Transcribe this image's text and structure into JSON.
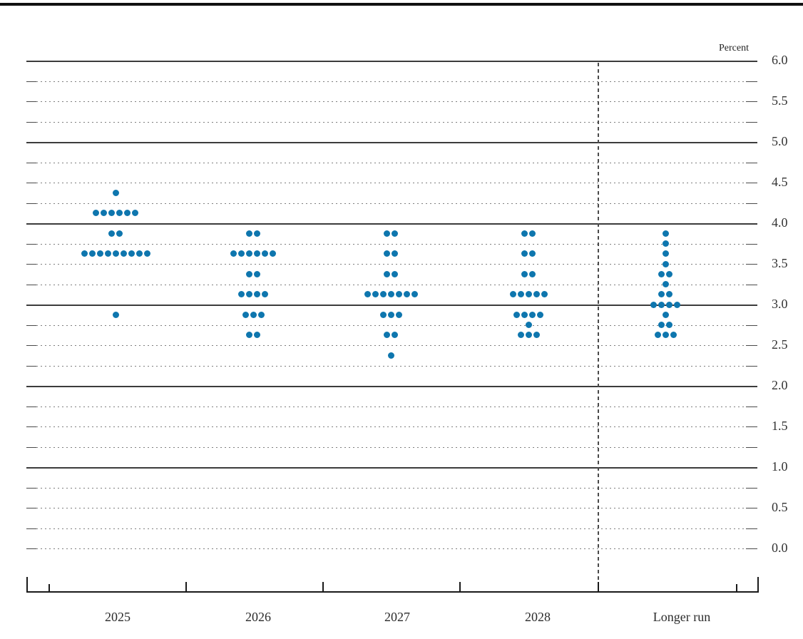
{
  "chart_data": {
    "type": "scatter",
    "variant": "fomc-dot-plot",
    "unit_label": "Percent",
    "grid": "on",
    "legend_position": "none",
    "categories": [
      "2025",
      "2026",
      "2027",
      "2028",
      "Longer run"
    ],
    "y_axis": {
      "min": 0.0,
      "max": 6.0,
      "grid_step": 0.25,
      "label_step": 0.5,
      "solid_line_values": [
        1.0,
        2.0,
        3.0,
        4.0,
        5.0,
        6.0
      ],
      "tick_labels": [
        "6.0",
        "5.5",
        "5.0",
        "4.5",
        "4.0",
        "3.5",
        "3.0",
        "2.5",
        "2.0",
        "1.5",
        "1.0",
        "0.5",
        "0.0"
      ]
    },
    "series": [
      {
        "category": "2025",
        "dots": [
          {
            "rate": 4.375,
            "count": 1
          },
          {
            "rate": 4.125,
            "count": 6
          },
          {
            "rate": 3.875,
            "count": 2
          },
          {
            "rate": 3.625,
            "count": 9
          },
          {
            "rate": 2.875,
            "count": 1
          }
        ]
      },
      {
        "category": "2026",
        "dots": [
          {
            "rate": 3.875,
            "count": 2
          },
          {
            "rate": 3.625,
            "count": 6
          },
          {
            "rate": 3.375,
            "count": 2
          },
          {
            "rate": 3.125,
            "count": 4
          },
          {
            "rate": 2.875,
            "count": 3
          },
          {
            "rate": 2.625,
            "count": 2
          }
        ]
      },
      {
        "category": "2027",
        "dots": [
          {
            "rate": 3.875,
            "count": 2
          },
          {
            "rate": 3.625,
            "count": 2
          },
          {
            "rate": 3.375,
            "count": 2
          },
          {
            "rate": 3.125,
            "count": 7
          },
          {
            "rate": 2.875,
            "count": 3
          },
          {
            "rate": 2.625,
            "count": 2
          },
          {
            "rate": 2.375,
            "count": 1
          }
        ]
      },
      {
        "category": "2028",
        "dots": [
          {
            "rate": 3.875,
            "count": 2
          },
          {
            "rate": 3.625,
            "count": 2
          },
          {
            "rate": 3.375,
            "count": 2
          },
          {
            "rate": 3.125,
            "count": 5
          },
          {
            "rate": 2.875,
            "count": 4
          },
          {
            "rate": 2.75,
            "count": 1
          },
          {
            "rate": 2.625,
            "count": 3
          }
        ]
      },
      {
        "category": "Longer run",
        "dots": [
          {
            "rate": 3.875,
            "count": 1
          },
          {
            "rate": 3.75,
            "count": 1
          },
          {
            "rate": 3.625,
            "count": 1
          },
          {
            "rate": 3.5,
            "count": 1
          },
          {
            "rate": 3.375,
            "count": 2
          },
          {
            "rate": 3.25,
            "count": 1
          },
          {
            "rate": 3.125,
            "count": 2
          },
          {
            "rate": 3.0,
            "count": 4
          },
          {
            "rate": 2.875,
            "count": 1
          },
          {
            "rate": 2.75,
            "count": 2
          },
          {
            "rate": 2.625,
            "count": 3
          }
        ]
      }
    ],
    "colors": {
      "dot": "#0e76ae",
      "solid_gridline": "#3c3c3c",
      "dotted_gridline": "#7e7e7e",
      "axis": "#1a1a1a",
      "text": "#2b2b2b"
    }
  }
}
